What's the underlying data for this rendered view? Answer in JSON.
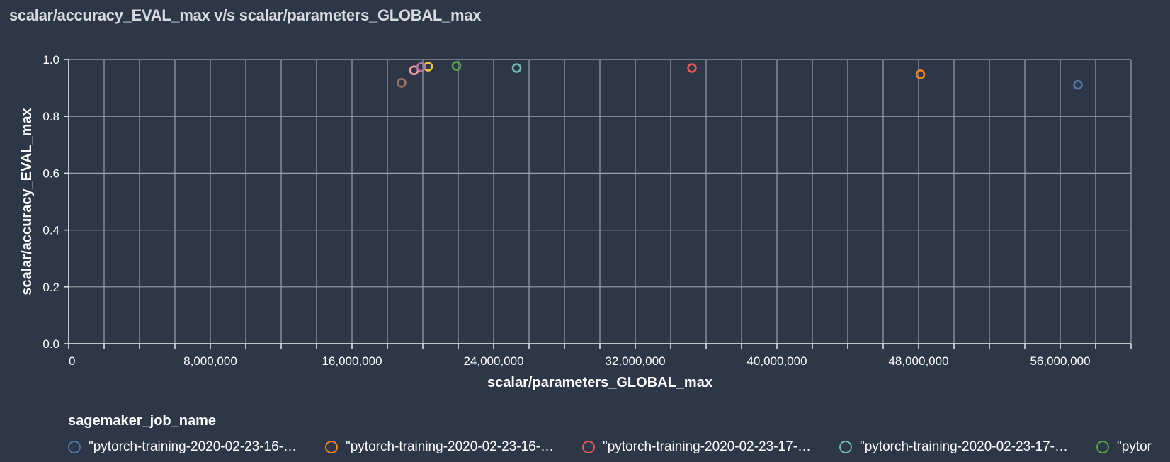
{
  "chart_data": {
    "type": "scatter",
    "title": "scalar/accuracy_EVAL_max v/s scalar/parameters_GLOBAL_max",
    "xlabel": "scalar/parameters_GLOBAL_max",
    "ylabel": "scalar/accuracy_EVAL_max",
    "xlim": [
      0,
      60000000
    ],
    "ylim": [
      0,
      1.0
    ],
    "xticks": [
      "0",
      "8,000,000",
      "16,000,000",
      "24,000,000",
      "32,000,000",
      "40,000,000",
      "48,000,000",
      "56,000,000"
    ],
    "xtick_values": [
      0,
      8000000,
      16000000,
      24000000,
      32000000,
      40000000,
      48000000,
      56000000
    ],
    "yticks": [
      "0.0",
      "0.2",
      "0.4",
      "0.6",
      "0.8",
      "1.0"
    ],
    "ytick_values": [
      0,
      0.2,
      0.4,
      0.6,
      0.8,
      1.0
    ],
    "grid": true,
    "legend_title": "sagemaker_job_name",
    "legend_placement": "bottom",
    "points": [
      {
        "x": 57000000,
        "y": 0.911,
        "color": "#4c78a8"
      },
      {
        "x": 48100000,
        "y": 0.948,
        "color": "#f58518"
      },
      {
        "x": 35200000,
        "y": 0.97,
        "color": "#e45756"
      },
      {
        "x": 25300000,
        "y": 0.97,
        "color": "#72b7b2"
      },
      {
        "x": 21900000,
        "y": 0.977,
        "color": "#54a24b"
      },
      {
        "x": 20300000,
        "y": 0.975,
        "color": "#eeca3b"
      },
      {
        "x": 19500000,
        "y": 0.962,
        "color": "#ff9da6"
      },
      {
        "x": 19900000,
        "y": 0.973,
        "color": "#b279a2"
      },
      {
        "x": 18800000,
        "y": 0.918,
        "color": "#9d755d"
      }
    ],
    "legend": [
      {
        "label": "\"pytorch-training-2020-02-23-16-…",
        "color": "#4c78a8"
      },
      {
        "label": "\"pytorch-training-2020-02-23-16-…",
        "color": "#f58518"
      },
      {
        "label": "\"pytorch-training-2020-02-23-17-…",
        "color": "#e45756"
      },
      {
        "label": "\"pytorch-training-2020-02-23-17-…",
        "color": "#72b7b2"
      },
      {
        "label": "\"pytor",
        "color": "#54a24b"
      }
    ]
  }
}
